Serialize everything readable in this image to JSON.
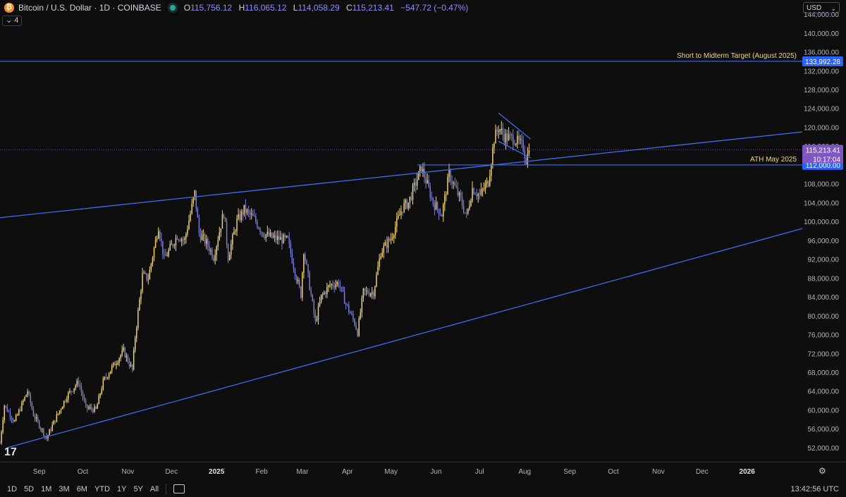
{
  "header": {
    "symbol_title": "Bitcoin / U.S. Dollar · 1D · COINBASE",
    "open_label": "O",
    "open": "115,756.12",
    "high_label": "H",
    "high": "116,065.12",
    "low_label": "L",
    "low": "114,058.29",
    "close_label": "C",
    "close": "115,213.41",
    "change": "−547.72 (−0.47%)",
    "indicator_count": "4",
    "currency": "USD"
  },
  "bottom_bar": {
    "ranges": [
      "1D",
      "5D",
      "1M",
      "3M",
      "6M",
      "YTD",
      "1Y",
      "5Y",
      "All"
    ],
    "time": "13:42:56 UTC"
  },
  "colors": {
    "background": "#0e0e0e",
    "up_candle": "#f5d76e",
    "down_candle": "#7b7fd4",
    "trendline": "#3f6cf0",
    "price_label": "#7e57c2",
    "level_label": "#2962ff",
    "annotation_text": "#f5d76e"
  },
  "chart_data": {
    "type": "candlestick",
    "symbol": "BTCUSD",
    "interval": "1D",
    "ylim": [
      49000,
      147000
    ],
    "y_ticks": [
      "52,000.00",
      "56,000.00",
      "60,000.00",
      "64,000.00",
      "68,000.00",
      "72,000.00",
      "76,000.00",
      "80,000.00",
      "84,000.00",
      "88,000.00",
      "92,000.00",
      "96,000.00",
      "100,000.00",
      "104,000.00",
      "108,000.00",
      "112,000.00",
      "116,000.00",
      "120,000.00",
      "124,000.00",
      "128,000.00",
      "132,000.00",
      "136,000.00",
      "140,000.00",
      "144,000.00"
    ],
    "x_ticks": [
      {
        "label": "Sep",
        "date": "2024-09-01"
      },
      {
        "label": "Oct",
        "date": "2024-10-01"
      },
      {
        "label": "Nov",
        "date": "2024-11-01"
      },
      {
        "label": "Dec",
        "date": "2024-12-01"
      },
      {
        "label": "2025",
        "date": "2025-01-01"
      },
      {
        "label": "Feb",
        "date": "2025-02-01"
      },
      {
        "label": "Mar",
        "date": "2025-03-01"
      },
      {
        "label": "Apr",
        "date": "2025-04-01"
      },
      {
        "label": "May",
        "date": "2025-05-01"
      },
      {
        "label": "Jun",
        "date": "2025-06-01"
      },
      {
        "label": "Jul",
        "date": "2025-07-01"
      },
      {
        "label": "Aug",
        "date": "2025-08-01"
      },
      {
        "label": "Sep",
        "date": "2025-09-01"
      },
      {
        "label": "Oct",
        "date": "2025-10-01"
      },
      {
        "label": "Nov",
        "date": "2025-11-01"
      },
      {
        "label": "Dec",
        "date": "2025-12-01"
      },
      {
        "label": "2026",
        "date": "2026-01-01"
      }
    ],
    "xlim": [
      "2024-08-05",
      "2026-02-08"
    ],
    "close_path": [
      [
        "2024-08-05",
        53000
      ],
      [
        "2024-08-08",
        61000
      ],
      [
        "2024-08-15",
        57500
      ],
      [
        "2024-08-24",
        64000
      ],
      [
        "2024-08-28",
        59000
      ],
      [
        "2024-09-06",
        54000
      ],
      [
        "2024-09-12",
        58000
      ],
      [
        "2024-09-20",
        63000
      ],
      [
        "2024-09-28",
        66000
      ],
      [
        "2024-10-03",
        60500
      ],
      [
        "2024-10-10",
        60000
      ],
      [
        "2024-10-15",
        66000
      ],
      [
        "2024-10-21",
        69000
      ],
      [
        "2024-10-29",
        72500
      ],
      [
        "2024-11-04",
        68500
      ],
      [
        "2024-11-06",
        75500
      ],
      [
        "2024-11-11",
        88500
      ],
      [
        "2024-11-15",
        88000
      ],
      [
        "2024-11-22",
        99000
      ],
      [
        "2024-11-26",
        92000
      ],
      [
        "2024-12-05",
        97000
      ],
      [
        "2024-12-10",
        96000
      ],
      [
        "2024-12-17",
        106000
      ],
      [
        "2024-12-20",
        97500
      ],
      [
        "2024-12-26",
        95000
      ],
      [
        "2024-12-30",
        92500
      ],
      [
        "2025-01-06",
        102000
      ],
      [
        "2025-01-09",
        92500
      ],
      [
        "2025-01-15",
        100000
      ],
      [
        "2025-01-20",
        102500
      ],
      [
        "2025-01-27",
        100500
      ],
      [
        "2025-02-02",
        97500
      ],
      [
        "2025-02-09",
        96500
      ],
      [
        "2025-02-19",
        96000
      ],
      [
        "2025-02-25",
        88000
      ],
      [
        "2025-02-28",
        84500
      ],
      [
        "2025-03-02",
        94000
      ],
      [
        "2025-03-10",
        78500
      ],
      [
        "2025-03-14",
        84000
      ],
      [
        "2025-03-20",
        86500
      ],
      [
        "2025-03-26",
        87000
      ],
      [
        "2025-03-31",
        82500
      ],
      [
        "2025-04-06",
        78500
      ],
      [
        "2025-04-08",
        76500
      ],
      [
        "2025-04-12",
        85000
      ],
      [
        "2025-04-19",
        85000
      ],
      [
        "2025-04-24",
        93500
      ],
      [
        "2025-05-01",
        96500
      ],
      [
        "2025-05-09",
        103000
      ],
      [
        "2025-05-13",
        104000
      ],
      [
        "2025-05-22",
        111500
      ],
      [
        "2025-05-30",
        104000
      ],
      [
        "2025-06-05",
        101500
      ],
      [
        "2025-06-10",
        110000
      ],
      [
        "2025-06-18",
        104500
      ],
      [
        "2025-06-22",
        101000
      ],
      [
        "2025-06-26",
        107000
      ],
      [
        "2025-07-01",
        105500
      ],
      [
        "2025-07-07",
        108500
      ],
      [
        "2025-07-11",
        117500
      ],
      [
        "2025-07-14",
        120000
      ],
      [
        "2025-07-18",
        118000
      ],
      [
        "2025-07-25",
        117500
      ],
      [
        "2025-07-31",
        115800
      ],
      [
        "2025-08-02",
        113000
      ],
      [
        "2025-08-04",
        115213
      ]
    ],
    "price_axis_labels": {
      "current_price": "115,213.41",
      "countdown": "10:17:04",
      "target_price": "133,992.28",
      "ath_price": "112,000.00"
    },
    "annotations": [
      {
        "text": "Short to Midterm Target (August 2025)",
        "price": 133992.28
      },
      {
        "text": "ATH May 2025",
        "price": 112000
      }
    ],
    "lines": [
      {
        "kind": "horizontal",
        "price": 133992.28
      },
      {
        "kind": "horizontal",
        "price": 112000,
        "from": "2025-05-19"
      },
      {
        "kind": "trend",
        "from": [
          "2024-08-05",
          100800
        ],
        "to": [
          "2026-02-08",
          119000
        ]
      },
      {
        "kind": "trend",
        "from": [
          "2024-08-10",
          52000
        ],
        "to": [
          "2026-02-08",
          98500
        ]
      },
      {
        "kind": "trend",
        "from": [
          "2025-07-14",
          123000
        ],
        "to": [
          "2025-08-05",
          117500
        ]
      },
      {
        "kind": "trend",
        "from": [
          "2025-07-14",
          117000
        ],
        "to": [
          "2025-08-05",
          113500
        ]
      }
    ],
    "grid": false
  }
}
